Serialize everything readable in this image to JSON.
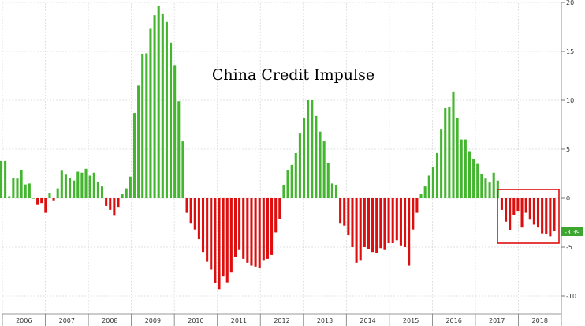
{
  "chart_data": {
    "type": "bar",
    "title": "China Credit Impulse",
    "x_ticks": [
      "2006",
      "2007",
      "2008",
      "2009",
      "2010",
      "2011",
      "2012",
      "2013",
      "2014",
      "2015",
      "2016",
      "2017",
      "2018"
    ],
    "y_ticks": [
      20,
      15,
      10,
      5,
      0,
      -5,
      -10
    ],
    "ylim": [
      -10.5,
      20
    ],
    "last_value_label": "-3.39",
    "grid": true,
    "colors": {
      "positive": "#43b52e",
      "negative": "#dd0e0e",
      "last_label_bg": "#3da631",
      "highlight_box": "#dd0e0e"
    },
    "values": [
      3.8,
      3.8,
      0.2,
      2.1,
      2.0,
      2.9,
      1.4,
      1.5,
      0.0,
      -0.7,
      -0.5,
      -1.5,
      0.5,
      -0.3,
      1.0,
      2.8,
      2.4,
      2.1,
      1.8,
      2.7,
      2.6,
      3.0,
      2.3,
      2.6,
      1.7,
      1.2,
      -0.8,
      -1.2,
      -1.8,
      -0.9,
      0.4,
      1.0,
      2.2,
      8.7,
      11.5,
      14.7,
      14.8,
      17.3,
      18.7,
      19.6,
      18.8,
      18.0,
      15.9,
      13.6,
      9.9,
      5.8,
      -1.5,
      -2.6,
      -3.2,
      -4.2,
      -5.5,
      -6.5,
      -7.3,
      -8.7,
      -9.3,
      -8.0,
      -8.6,
      -7.6,
      -6.0,
      -5.3,
      -6.2,
      -6.6,
      -6.9,
      -7.0,
      -7.1,
      -6.4,
      -6.2,
      -5.8,
      -3.5,
      -2.1,
      1.3,
      2.9,
      3.4,
      4.6,
      6.6,
      8.2,
      10.0,
      10.0,
      8.4,
      6.8,
      5.8,
      3.6,
      1.5,
      1.3,
      -2.6,
      -2.8,
      -3.8,
      -5.0,
      -6.6,
      -6.4,
      -5.0,
      -5.2,
      -5.5,
      -5.6,
      -5.1,
      -5.3,
      -4.6,
      -4.6,
      -4.3,
      -4.9,
      -5.0,
      -6.9,
      -3.2,
      -1.5,
      0.4,
      1.2,
      2.3,
      3.2,
      4.6,
      7.0,
      9.2,
      9.3,
      10.9,
      8.2,
      6.0,
      6.0,
      4.8,
      4.0,
      3.5,
      2.5,
      2.0,
      1.6,
      2.6,
      1.8,
      -1.2,
      -2.4,
      -3.3,
      -1.7,
      -1.3,
      -3.0,
      -1.5,
      -2.2,
      -2.7,
      -3.0,
      -3.6,
      -3.7,
      -3.9,
      -3.39
    ]
  }
}
